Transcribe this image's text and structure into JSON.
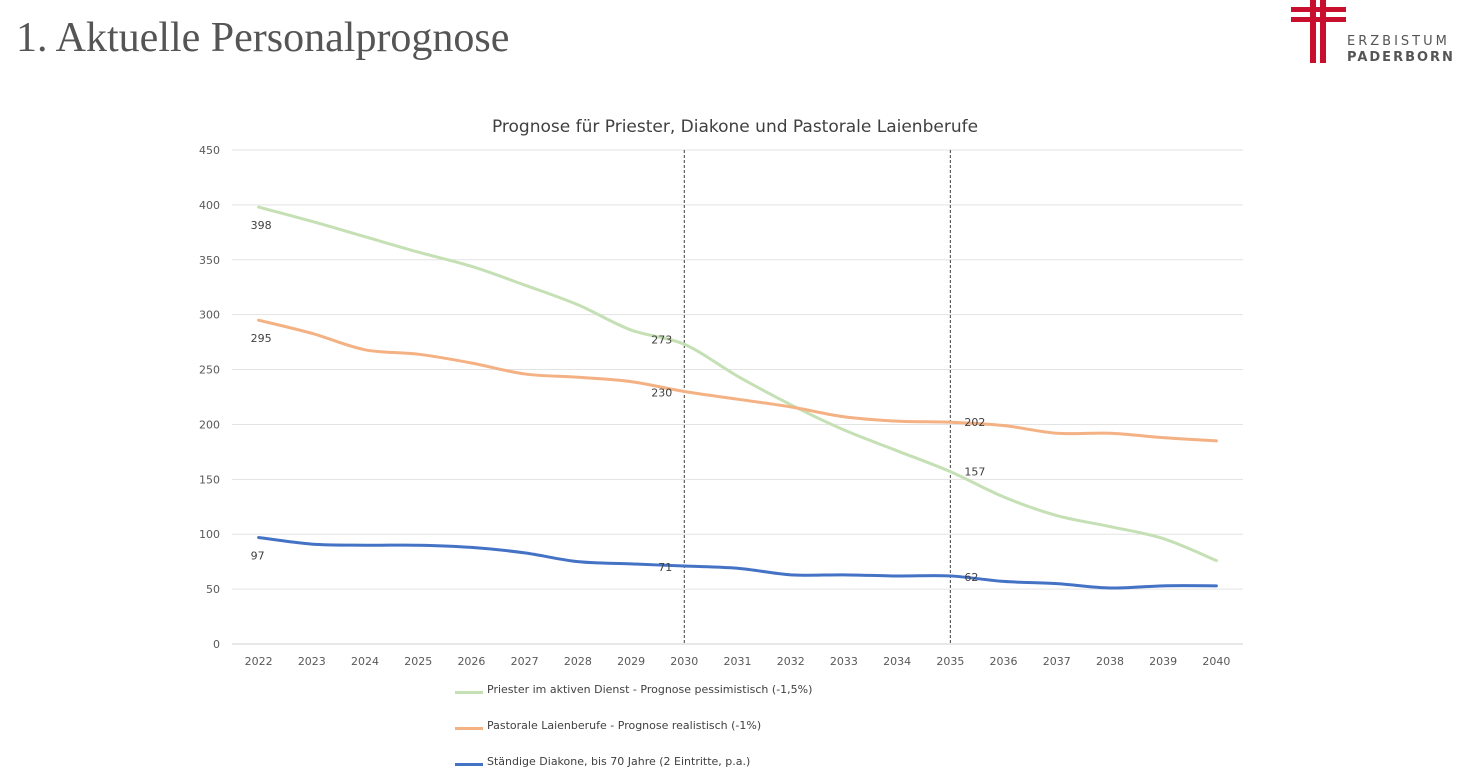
{
  "slide": {
    "title": "1. Aktuelle Personalprognose"
  },
  "logo": {
    "line1": "ERZBISTUM",
    "line2": "PADERBORN",
    "color": "#c8102e"
  },
  "chart_data": {
    "type": "line",
    "title": "Prognose für Priester, Diakone und Pastorale Laienberufe",
    "xlabel": "",
    "ylabel": "",
    "ylim": [
      0,
      450
    ],
    "yticks": [
      0,
      50,
      100,
      150,
      200,
      250,
      300,
      350,
      400,
      450
    ],
    "grid": true,
    "legend_position": "bottom",
    "categories": [
      "2022",
      "2023",
      "2024",
      "2025",
      "2026",
      "2027",
      "2028",
      "2029",
      "2030",
      "2031",
      "2032",
      "2033",
      "2034",
      "2035",
      "2036",
      "2037",
      "2038",
      "2039",
      "2040"
    ],
    "vlines": [
      "2030",
      "2035"
    ],
    "series": [
      {
        "name": "Priester im aktiven Dienst - Prognose pessimistisch (-1,5%)",
        "color": "#c5e0b4",
        "values": [
          398,
          385,
          371,
          357,
          344,
          327,
          309,
          286,
          273,
          244,
          218,
          195,
          176,
          157,
          134,
          117,
          107,
          96,
          76
        ],
        "labels": {
          "2022": "398",
          "2030": "273",
          "2035": "157"
        }
      },
      {
        "name": "Pastorale Laienberufe - Prognose realistisch (-1%)",
        "color": "#f4b183",
        "values": [
          295,
          283,
          268,
          264,
          256,
          246,
          243,
          239,
          230,
          223,
          216,
          207,
          203,
          202,
          199,
          192,
          192,
          188,
          185
        ],
        "labels": {
          "2022": "295",
          "2030": "230",
          "2035": "202"
        }
      },
      {
        "name": "Ständige Diakone, bis 70 Jahre (2 Eintritte, p.a.)",
        "color": "#4472c4",
        "values": [
          97,
          91,
          90,
          90,
          88,
          83,
          75,
          73,
          71,
          69,
          63,
          63,
          62,
          62,
          57,
          55,
          51,
          53,
          53
        ],
        "labels": {
          "2022": "97",
          "2030": "71",
          "2035": "62"
        }
      }
    ]
  }
}
